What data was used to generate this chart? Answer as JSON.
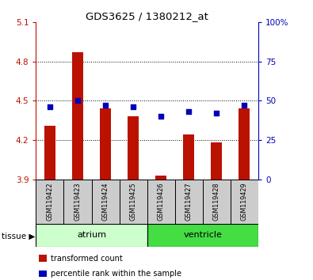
{
  "title": "GDS3625 / 1380212_at",
  "samples": [
    "GSM119422",
    "GSM119423",
    "GSM119424",
    "GSM119425",
    "GSM119426",
    "GSM119427",
    "GSM119428",
    "GSM119429"
  ],
  "transformed_counts": [
    4.31,
    4.87,
    4.44,
    4.38,
    3.93,
    4.24,
    4.18,
    4.44
  ],
  "percentile_ranks": [
    46,
    50,
    47,
    46,
    40,
    43,
    42,
    47
  ],
  "ylim_left": [
    3.9,
    5.1
  ],
  "ylim_right": [
    0,
    100
  ],
  "yticks_left": [
    3.9,
    4.2,
    4.5,
    4.8,
    5.1
  ],
  "yticks_right": [
    0,
    25,
    50,
    75,
    100
  ],
  "ytick_labels_left": [
    "3.9",
    "4.2",
    "4.5",
    "4.8",
    "5.1"
  ],
  "ytick_labels_right": [
    "0",
    "25",
    "50",
    "75",
    "100%"
  ],
  "bar_color": "#bb1100",
  "dot_color": "#0000bb",
  "grid_color": "#000000",
  "tissue_groups": [
    {
      "label": "atrium",
      "indices": [
        0,
        1,
        2,
        3
      ],
      "color": "#ccffcc"
    },
    {
      "label": "ventricle",
      "indices": [
        4,
        5,
        6,
        7
      ],
      "color": "#44dd44"
    }
  ],
  "tissue_label": "tissue",
  "bar_bottom": 3.9,
  "legend_items": [
    {
      "label": "transformed count",
      "color": "#bb1100"
    },
    {
      "label": "percentile rank within the sample",
      "color": "#0000bb"
    }
  ],
  "sample_box_color": "#cccccc",
  "bg_color": "#ffffff"
}
